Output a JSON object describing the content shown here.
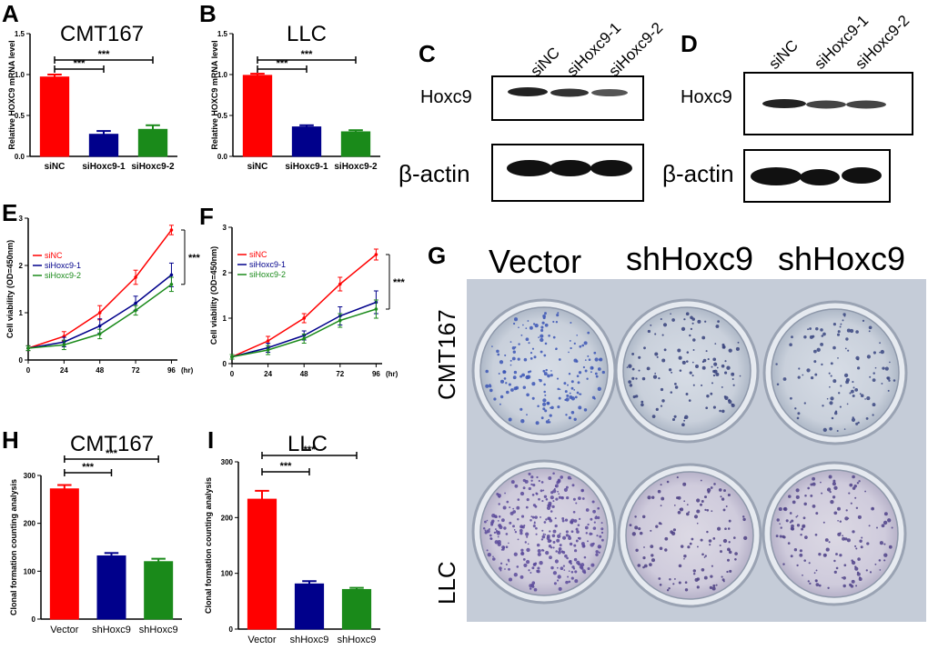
{
  "panel_labels": [
    "A",
    "B",
    "C",
    "D",
    "E",
    "F",
    "G",
    "H",
    "I"
  ],
  "colors": {
    "red": "#ff0000",
    "blue": "#00008b",
    "green": "#1a8a1a"
  },
  "chart_data": [
    {
      "id": "A",
      "type": "bar",
      "title": "CMT167",
      "ylabel": "Relative HOXC9 mRNA level",
      "categories": [
        "siNC",
        "siHoxc9-1",
        "siHoxc9-2"
      ],
      "values": [
        0.97,
        0.27,
        0.33
      ],
      "errors": [
        0.03,
        0.04,
        0.05
      ],
      "ylim": [
        0,
        1.5
      ],
      "yticks": [
        "0.0",
        "0.5",
        "1.0",
        "1.5"
      ],
      "significance": [
        "***",
        "***"
      ]
    },
    {
      "id": "B",
      "type": "bar",
      "title": "LLC",
      "ylabel": "Relative HOXC9 mRNA level",
      "categories": [
        "siNC",
        "siHoxc9-1",
        "siHoxc9-2"
      ],
      "values": [
        0.99,
        0.36,
        0.3
      ],
      "errors": [
        0.02,
        0.02,
        0.02
      ],
      "ylim": [
        0,
        1.5
      ],
      "yticks": [
        "0.0",
        "0.5",
        "1.0",
        "1.5"
      ],
      "significance": [
        "***",
        "***"
      ]
    },
    {
      "id": "E",
      "type": "line",
      "ylabel": "Cell viability (OD=450nm)",
      "x": [
        0,
        24,
        48,
        72,
        96
      ],
      "xticks": [
        "0",
        "24",
        "48",
        "72",
        "96"
      ],
      "xunit": "(hr)",
      "xlim": [
        0,
        100
      ],
      "ylim": [
        0,
        3
      ],
      "yticks": [
        "0",
        "1",
        "2",
        "3"
      ],
      "series": [
        {
          "name": "siNC",
          "values": [
            0.25,
            0.5,
            1.0,
            1.75,
            2.75
          ],
          "errors": [
            0.05,
            0.1,
            0.15,
            0.15,
            0.1
          ]
        },
        {
          "name": "siHoxc9-1",
          "values": [
            0.25,
            0.38,
            0.72,
            1.2,
            1.8
          ],
          "errors": [
            0.05,
            0.1,
            0.15,
            0.15,
            0.25
          ]
        },
        {
          "name": "siHoxc9-2",
          "values": [
            0.25,
            0.32,
            0.55,
            1.05,
            1.6
          ],
          "errors": [
            0.05,
            0.1,
            0.1,
            0.1,
            0.15
          ]
        }
      ],
      "significance": "***"
    },
    {
      "id": "F",
      "type": "line",
      "ylabel": "Cell viability (OD=450nm)",
      "x": [
        0,
        24,
        48,
        72,
        96
      ],
      "xticks": [
        "0",
        "24",
        "48",
        "72",
        "96"
      ],
      "xunit": "(hr)",
      "xlim": [
        0,
        100
      ],
      "ylim": [
        0,
        3
      ],
      "yticks": [
        "0",
        "1",
        "2",
        "3"
      ],
      "series": [
        {
          "name": "siNC",
          "values": [
            0.15,
            0.5,
            1.0,
            1.75,
            2.4
          ],
          "errors": [
            0.05,
            0.1,
            0.1,
            0.15,
            0.12
          ]
        },
        {
          "name": "siHoxc9-1",
          "values": [
            0.15,
            0.35,
            0.62,
            1.05,
            1.35
          ],
          "errors": [
            0.05,
            0.1,
            0.1,
            0.2,
            0.25
          ]
        },
        {
          "name": "siHoxc9-2",
          "values": [
            0.15,
            0.3,
            0.55,
            0.95,
            1.2
          ],
          "errors": [
            0.05,
            0.1,
            0.1,
            0.15,
            0.2
          ]
        }
      ],
      "significance": "***"
    },
    {
      "id": "H",
      "type": "bar",
      "title": "CMT167",
      "ylabel": "Clonal formation counting analysis",
      "categories": [
        "Vector",
        "shHoxc9",
        "shHoxc9"
      ],
      "values": [
        272,
        132,
        120
      ],
      "errors": [
        8,
        6,
        6
      ],
      "ylim": [
        0,
        300
      ],
      "yticks": [
        "0",
        "100",
        "200",
        "300"
      ],
      "significance": [
        "***",
        "***"
      ]
    },
    {
      "id": "I",
      "type": "bar",
      "title": "LLC",
      "ylabel": "Clonal formation counting analysis",
      "categories": [
        "Vector",
        "shHoxc9",
        "shHoxc9"
      ],
      "values": [
        233,
        81,
        71
      ],
      "errors": [
        15,
        5,
        3
      ],
      "ylim": [
        0,
        300
      ],
      "yticks": [
        "0",
        "100",
        "200",
        "300"
      ],
      "significance": [
        "***",
        "***"
      ]
    }
  ],
  "blot_C": {
    "lanes": [
      "siNC",
      "siHoxc9-1",
      "siHoxc9-2"
    ],
    "top_label": "Hoxc9",
    "bottom_label": "β-actin"
  },
  "blot_D": {
    "lanes": [
      "siNC",
      "siHoxc9-1",
      "siHoxc9-2"
    ],
    "top_label": "Hoxc9",
    "bottom_label": "β-actin"
  },
  "plate_G": {
    "columns": [
      "Vector",
      "shHoxc9",
      "shHoxc9"
    ],
    "rows": [
      "CMT167",
      "LLC"
    ]
  }
}
